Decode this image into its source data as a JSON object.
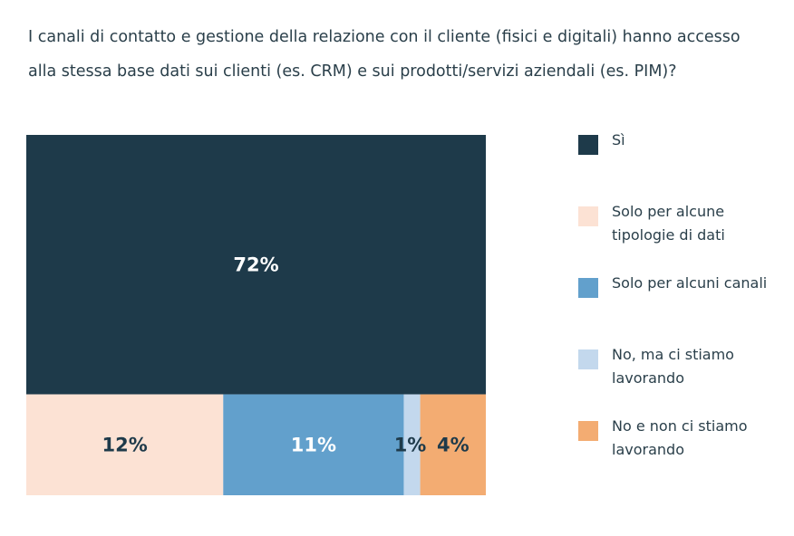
{
  "title": "I canali di contatto e gestione della relazione con il cliente (fisici e digitali) hanno accesso alla stessa base dati sui clienti (es. CRM) e sui prodotti/servizi aziendali (es. PIM)?",
  "chart_data": {
    "type": "treemap",
    "unit": "%",
    "segments": [
      {
        "name": "Sì",
        "value": 72,
        "label": "72%",
        "color": "#1e3a4a",
        "label_color": "#ffffff"
      },
      {
        "name": "Solo per alcune tipologie di dati",
        "value": 12,
        "label": "12%",
        "color": "#fce2d4",
        "label_color": "#1e3a4a"
      },
      {
        "name": "Solo per alcuni canali",
        "value": 11,
        "label": "11%",
        "color": "#62a0cc",
        "label_color": "#ffffff"
      },
      {
        "name": "No, ma ci stiamo lavorando",
        "value": 1,
        "label": "1%",
        "color": "#c3d8ed",
        "label_color": "#1e3a4a"
      },
      {
        "name": "No e non ci stiamo lavorando",
        "value": 4,
        "label": "4%",
        "color": "#f3ac72",
        "label_color": "#1e3a4a"
      }
    ],
    "legend": [
      "Sì",
      "Solo per alcune tipologie di dati",
      "Solo per alcuni canali",
      "No, ma ci stiamo lavorando",
      "No e non ci stiamo lavorando"
    ],
    "legend_position": "right"
  }
}
